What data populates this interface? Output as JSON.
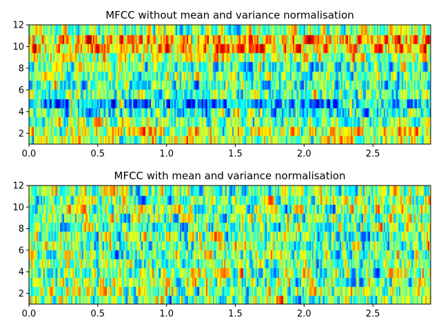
{
  "chart_data": [
    {
      "type": "heatmap",
      "title": "MFCC without mean and variance normalisation",
      "xlabel": "",
      "ylabel": "",
      "xlim": [
        0,
        2.92
      ],
      "ylim": [
        1,
        12
      ],
      "xticks": [
        0.0,
        0.5,
        1.0,
        1.5,
        2.0,
        2.5
      ],
      "xtick_labels": [
        "0.0",
        "0.5",
        "1.0",
        "1.5",
        "2.0",
        "2.5"
      ],
      "yticks": [
        2,
        4,
        6,
        8,
        10,
        12
      ],
      "ytick_labels": [
        "2",
        "4",
        "6",
        "8",
        "10",
        "12"
      ],
      "colormap": "jet",
      "grid": false,
      "n_rows": 13,
      "n_frames": 292,
      "seed": 7,
      "row_means": [
        0.55,
        0.62,
        0.5,
        0.38,
        0.3,
        0.45,
        0.42,
        0.48,
        0.45,
        0.55,
        0.68,
        0.72,
        0.5
      ],
      "spread": 0.22
    },
    {
      "type": "heatmap",
      "title": "MFCC with mean and variance normalisation",
      "xlabel": "",
      "ylabel": "",
      "xlim": [
        0,
        2.92
      ],
      "ylim": [
        1,
        12
      ],
      "xticks": [
        0.0,
        0.5,
        1.0,
        1.5,
        2.0,
        2.5
      ],
      "xtick_labels": [
        "0.0",
        "0.5",
        "1.0",
        "1.5",
        "2.0",
        "2.5"
      ],
      "yticks": [
        2,
        4,
        6,
        8,
        10,
        12
      ],
      "ytick_labels": [
        "2",
        "4",
        "6",
        "8",
        "10",
        "12"
      ],
      "colormap": "jet",
      "grid": false,
      "n_rows": 13,
      "n_frames": 292,
      "seed": 19,
      "row_means": [
        0.5,
        0.5,
        0.5,
        0.5,
        0.5,
        0.5,
        0.5,
        0.5,
        0.5,
        0.5,
        0.5,
        0.5,
        0.5
      ],
      "spread": 0.24
    }
  ]
}
